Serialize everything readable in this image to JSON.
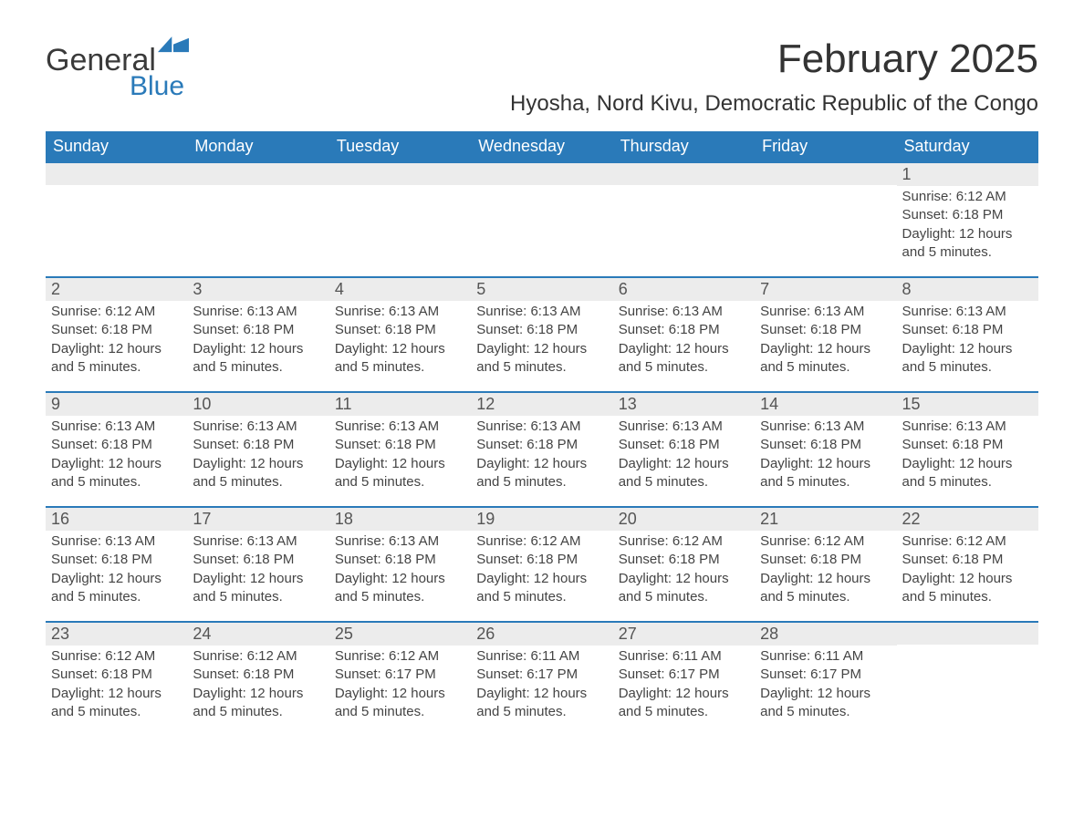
{
  "brand": {
    "text1": "General",
    "text2": "Blue",
    "icon_color": "#2a7ab9"
  },
  "title": "February 2025",
  "location": "Hyosha, Nord Kivu, Democratic Republic of the Congo",
  "colors": {
    "header_bg": "#2a7ab9",
    "date_bar_bg": "#ececec",
    "text": "#333333"
  },
  "day_names": [
    "Sunday",
    "Monday",
    "Tuesday",
    "Wednesday",
    "Thursday",
    "Friday",
    "Saturday"
  ],
  "weeks": [
    [
      {
        "date": "",
        "sunrise": "",
        "sunset": "",
        "daylight": ""
      },
      {
        "date": "",
        "sunrise": "",
        "sunset": "",
        "daylight": ""
      },
      {
        "date": "",
        "sunrise": "",
        "sunset": "",
        "daylight": ""
      },
      {
        "date": "",
        "sunrise": "",
        "sunset": "",
        "daylight": ""
      },
      {
        "date": "",
        "sunrise": "",
        "sunset": "",
        "daylight": ""
      },
      {
        "date": "",
        "sunrise": "",
        "sunset": "",
        "daylight": ""
      },
      {
        "date": "1",
        "sunrise": "Sunrise: 6:12 AM",
        "sunset": "Sunset: 6:18 PM",
        "daylight": "Daylight: 12 hours and 5 minutes."
      }
    ],
    [
      {
        "date": "2",
        "sunrise": "Sunrise: 6:12 AM",
        "sunset": "Sunset: 6:18 PM",
        "daylight": "Daylight: 12 hours and 5 minutes."
      },
      {
        "date": "3",
        "sunrise": "Sunrise: 6:13 AM",
        "sunset": "Sunset: 6:18 PM",
        "daylight": "Daylight: 12 hours and 5 minutes."
      },
      {
        "date": "4",
        "sunrise": "Sunrise: 6:13 AM",
        "sunset": "Sunset: 6:18 PM",
        "daylight": "Daylight: 12 hours and 5 minutes."
      },
      {
        "date": "5",
        "sunrise": "Sunrise: 6:13 AM",
        "sunset": "Sunset: 6:18 PM",
        "daylight": "Daylight: 12 hours and 5 minutes."
      },
      {
        "date": "6",
        "sunrise": "Sunrise: 6:13 AM",
        "sunset": "Sunset: 6:18 PM",
        "daylight": "Daylight: 12 hours and 5 minutes."
      },
      {
        "date": "7",
        "sunrise": "Sunrise: 6:13 AM",
        "sunset": "Sunset: 6:18 PM",
        "daylight": "Daylight: 12 hours and 5 minutes."
      },
      {
        "date": "8",
        "sunrise": "Sunrise: 6:13 AM",
        "sunset": "Sunset: 6:18 PM",
        "daylight": "Daylight: 12 hours and 5 minutes."
      }
    ],
    [
      {
        "date": "9",
        "sunrise": "Sunrise: 6:13 AM",
        "sunset": "Sunset: 6:18 PM",
        "daylight": "Daylight: 12 hours and 5 minutes."
      },
      {
        "date": "10",
        "sunrise": "Sunrise: 6:13 AM",
        "sunset": "Sunset: 6:18 PM",
        "daylight": "Daylight: 12 hours and 5 minutes."
      },
      {
        "date": "11",
        "sunrise": "Sunrise: 6:13 AM",
        "sunset": "Sunset: 6:18 PM",
        "daylight": "Daylight: 12 hours and 5 minutes."
      },
      {
        "date": "12",
        "sunrise": "Sunrise: 6:13 AM",
        "sunset": "Sunset: 6:18 PM",
        "daylight": "Daylight: 12 hours and 5 minutes."
      },
      {
        "date": "13",
        "sunrise": "Sunrise: 6:13 AM",
        "sunset": "Sunset: 6:18 PM",
        "daylight": "Daylight: 12 hours and 5 minutes."
      },
      {
        "date": "14",
        "sunrise": "Sunrise: 6:13 AM",
        "sunset": "Sunset: 6:18 PM",
        "daylight": "Daylight: 12 hours and 5 minutes."
      },
      {
        "date": "15",
        "sunrise": "Sunrise: 6:13 AM",
        "sunset": "Sunset: 6:18 PM",
        "daylight": "Daylight: 12 hours and 5 minutes."
      }
    ],
    [
      {
        "date": "16",
        "sunrise": "Sunrise: 6:13 AM",
        "sunset": "Sunset: 6:18 PM",
        "daylight": "Daylight: 12 hours and 5 minutes."
      },
      {
        "date": "17",
        "sunrise": "Sunrise: 6:13 AM",
        "sunset": "Sunset: 6:18 PM",
        "daylight": "Daylight: 12 hours and 5 minutes."
      },
      {
        "date": "18",
        "sunrise": "Sunrise: 6:13 AM",
        "sunset": "Sunset: 6:18 PM",
        "daylight": "Daylight: 12 hours and 5 minutes."
      },
      {
        "date": "19",
        "sunrise": "Sunrise: 6:12 AM",
        "sunset": "Sunset: 6:18 PM",
        "daylight": "Daylight: 12 hours and 5 minutes."
      },
      {
        "date": "20",
        "sunrise": "Sunrise: 6:12 AM",
        "sunset": "Sunset: 6:18 PM",
        "daylight": "Daylight: 12 hours and 5 minutes."
      },
      {
        "date": "21",
        "sunrise": "Sunrise: 6:12 AM",
        "sunset": "Sunset: 6:18 PM",
        "daylight": "Daylight: 12 hours and 5 minutes."
      },
      {
        "date": "22",
        "sunrise": "Sunrise: 6:12 AM",
        "sunset": "Sunset: 6:18 PM",
        "daylight": "Daylight: 12 hours and 5 minutes."
      }
    ],
    [
      {
        "date": "23",
        "sunrise": "Sunrise: 6:12 AM",
        "sunset": "Sunset: 6:18 PM",
        "daylight": "Daylight: 12 hours and 5 minutes."
      },
      {
        "date": "24",
        "sunrise": "Sunrise: 6:12 AM",
        "sunset": "Sunset: 6:18 PM",
        "daylight": "Daylight: 12 hours and 5 minutes."
      },
      {
        "date": "25",
        "sunrise": "Sunrise: 6:12 AM",
        "sunset": "Sunset: 6:17 PM",
        "daylight": "Daylight: 12 hours and 5 minutes."
      },
      {
        "date": "26",
        "sunrise": "Sunrise: 6:11 AM",
        "sunset": "Sunset: 6:17 PM",
        "daylight": "Daylight: 12 hours and 5 minutes."
      },
      {
        "date": "27",
        "sunrise": "Sunrise: 6:11 AM",
        "sunset": "Sunset: 6:17 PM",
        "daylight": "Daylight: 12 hours and 5 minutes."
      },
      {
        "date": "28",
        "sunrise": "Sunrise: 6:11 AM",
        "sunset": "Sunset: 6:17 PM",
        "daylight": "Daylight: 12 hours and 5 minutes."
      },
      {
        "date": "",
        "sunrise": "",
        "sunset": "",
        "daylight": ""
      }
    ]
  ]
}
